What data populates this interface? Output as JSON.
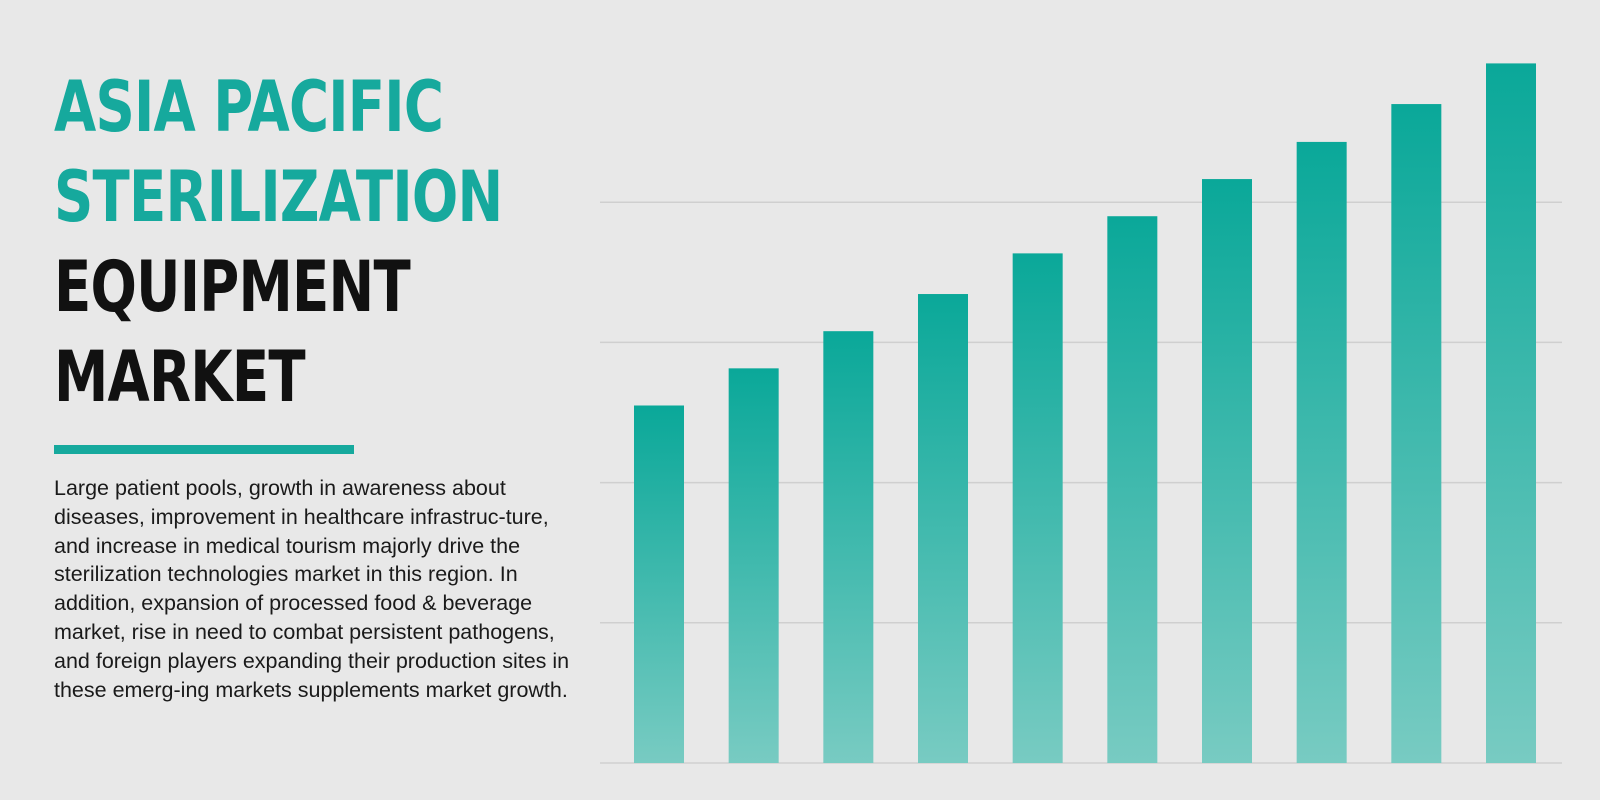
{
  "title": {
    "line1": "ASIA PACIFIC",
    "line2": "STERILIZATION",
    "line3": "EQUIPMENT",
    "line4": "MARKET"
  },
  "description": "Large patient pools, growth in awareness about diseases, improvement in healthcare infrastruc-ture, and increase in medical tourism majorly drive the sterilization technologies market in this region. In addition, expansion of processed food & beverage market, rise in need to combat persistent pathogens, and foreign players expanding their production sites in these emerg-ing markets supplements market growth.",
  "colors": {
    "accent": "#16a99d",
    "bar_top": "#0aa899",
    "bar_bottom": "#78cbc2",
    "gridline": "#cfcfcf",
    "background": "#e8e8e8",
    "text": "#111111"
  },
  "chart_data": {
    "type": "bar",
    "title": "",
    "xlabel": "",
    "ylabel": "",
    "categories": [
      "",
      "",
      "",
      "",
      "",
      "",
      "",
      "",
      "",
      ""
    ],
    "values": [
      51,
      56.3,
      61.6,
      66.9,
      72.7,
      78,
      83.3,
      88.6,
      94,
      99.8
    ],
    "ylim": [
      0,
      100
    ],
    "grid_values": [
      20,
      40,
      60,
      80
    ],
    "grid": true,
    "axis_labels_shown": false,
    "legend": "none"
  }
}
